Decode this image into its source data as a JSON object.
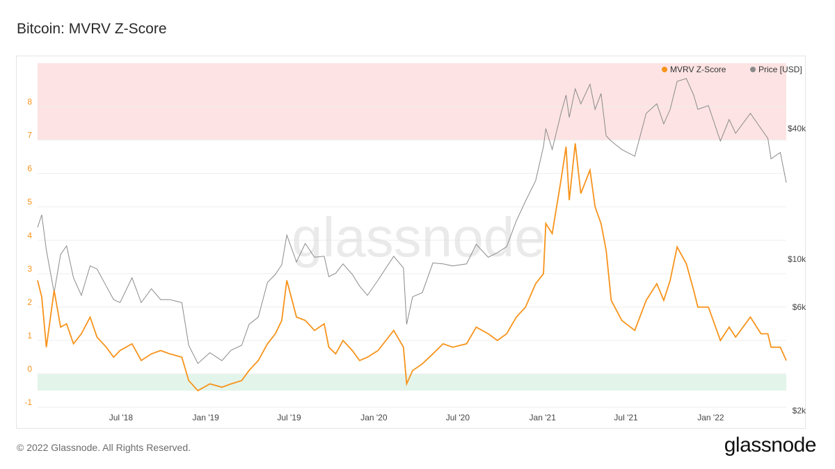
{
  "header": {
    "title": "Bitcoin: MVRV Z-Score"
  },
  "footer": {
    "copyright": "© 2022 Glassnode. All Rights Reserved.",
    "brand": "glassnode"
  },
  "watermark": "glassnode",
  "colors": {
    "mvrv": "#f7931a",
    "price": "#8a8a8a",
    "top_band": "#fde3e3",
    "bottom_band": "#e3f4ea",
    "grid": "#ededed"
  },
  "chart_data": {
    "type": "line",
    "title": "Bitcoin: MVRV Z-Score",
    "legend": {
      "placement": "top-right",
      "entries": [
        "MVRV Z-Score",
        "Price [USD]"
      ]
    },
    "x_ticks": [
      "Jul '18",
      "Jan '19",
      "Jul '19",
      "Jan '20",
      "Jul '20",
      "Jan '21",
      "Jul '21",
      "Jan '22"
    ],
    "x_tick_dates": [
      "2018-07-01",
      "2019-01-01",
      "2019-07-01",
      "2020-01-01",
      "2020-07-01",
      "2021-01-01",
      "2021-07-01",
      "2022-01-01"
    ],
    "x_range": [
      "2018-01-01",
      "2022-06-14"
    ],
    "y_left": {
      "label": "",
      "ticks": [
        "-1",
        "0",
        "1",
        "2",
        "3",
        "4",
        "5",
        "6",
        "7",
        "8"
      ],
      "range": [
        -1.1,
        9.3
      ]
    },
    "y_right": {
      "label": "",
      "scale": "log",
      "ticks": [
        "$2k",
        "$6k",
        "$10k",
        "$40k"
      ],
      "tick_values": [
        2000,
        6000,
        10000,
        40000
      ],
      "range": [
        2000,
        80000
      ]
    },
    "bands": [
      {
        "name": "top",
        "from": 7,
        "to": 9.3
      },
      {
        "name": "bottom",
        "from": -0.5,
        "to": 0
      }
    ],
    "series": [
      {
        "name": "MVRV Z-Score",
        "axis": "left",
        "x": [
          "2018-01-01",
          "2018-01-10",
          "2018-01-20",
          "2018-02-06",
          "2018-02-20",
          "2018-03-05",
          "2018-03-20",
          "2018-04-06",
          "2018-04-25",
          "2018-05-10",
          "2018-05-30",
          "2018-06-15",
          "2018-06-29",
          "2018-07-25",
          "2018-08-14",
          "2018-09-05",
          "2018-09-25",
          "2018-10-15",
          "2018-11-10",
          "2018-11-25",
          "2018-12-15",
          "2019-01-10",
          "2019-02-05",
          "2019-02-25",
          "2019-03-20",
          "2019-04-05",
          "2019-04-25",
          "2019-05-15",
          "2019-06-01",
          "2019-06-15",
          "2019-06-26",
          "2019-07-17",
          "2019-08-05",
          "2019-08-25",
          "2019-09-15",
          "2019-09-25",
          "2019-10-10",
          "2019-10-26",
          "2019-11-15",
          "2019-12-01",
          "2019-12-18",
          "2020-01-10",
          "2020-02-13",
          "2020-03-05",
          "2020-03-12",
          "2020-03-25",
          "2020-04-15",
          "2020-05-08",
          "2020-05-30",
          "2020-06-20",
          "2020-07-20",
          "2020-08-10",
          "2020-09-05",
          "2020-09-25",
          "2020-10-15",
          "2020-11-05",
          "2020-11-25",
          "2020-12-17",
          "2021-01-03",
          "2021-01-08",
          "2021-01-22",
          "2021-02-10",
          "2021-02-21",
          "2021-02-28",
          "2021-03-13",
          "2021-03-25",
          "2021-04-14",
          "2021-04-25",
          "2021-05-08",
          "2021-05-19",
          "2021-05-30",
          "2021-06-22",
          "2021-07-20",
          "2021-08-14",
          "2021-09-06",
          "2021-09-21",
          "2021-10-05",
          "2021-10-20",
          "2021-11-09",
          "2021-11-25",
          "2021-12-04",
          "2021-12-27",
          "2022-01-22",
          "2022-02-10",
          "2022-02-24",
          "2022-03-28",
          "2022-04-20",
          "2022-05-05",
          "2022-05-12",
          "2022-06-01",
          "2022-06-14"
        ],
        "values": [
          2.8,
          2.3,
          0.8,
          2.5,
          1.4,
          1.5,
          0.9,
          1.2,
          1.7,
          1.1,
          0.8,
          0.5,
          0.7,
          0.9,
          0.4,
          0.6,
          0.7,
          0.6,
          0.5,
          -0.2,
          -0.5,
          -0.3,
          -0.4,
          -0.3,
          -0.2,
          0.1,
          0.4,
          0.9,
          1.2,
          1.6,
          2.8,
          1.7,
          1.6,
          1.3,
          1.5,
          0.8,
          0.6,
          1.0,
          0.7,
          0.4,
          0.5,
          0.7,
          1.3,
          0.8,
          -0.3,
          0.1,
          0.3,
          0.6,
          0.9,
          0.8,
          0.9,
          1.4,
          1.2,
          1.0,
          1.2,
          1.7,
          2.0,
          2.7,
          3.0,
          4.5,
          4.2,
          5.8,
          6.8,
          5.2,
          6.9,
          5.4,
          6.1,
          5.0,
          4.5,
          3.7,
          2.2,
          1.6,
          1.3,
          2.2,
          2.7,
          2.2,
          2.8,
          3.8,
          3.3,
          2.5,
          2.0,
          2.0,
          1.0,
          1.4,
          1.1,
          1.7,
          1.2,
          1.2,
          0.8,
          0.8,
          0.4
        ]
      },
      {
        "name": "Price [USD]",
        "axis": "right",
        "x": [
          "2018-01-01",
          "2018-01-10",
          "2018-01-20",
          "2018-02-06",
          "2018-02-20",
          "2018-03-05",
          "2018-03-20",
          "2018-04-06",
          "2018-04-25",
          "2018-05-10",
          "2018-05-30",
          "2018-06-15",
          "2018-06-29",
          "2018-07-25",
          "2018-08-14",
          "2018-09-05",
          "2018-09-25",
          "2018-10-15",
          "2018-11-10",
          "2018-11-25",
          "2018-12-15",
          "2019-01-10",
          "2019-02-05",
          "2019-02-25",
          "2019-03-20",
          "2019-04-05",
          "2019-04-25",
          "2019-05-15",
          "2019-06-01",
          "2019-06-15",
          "2019-06-26",
          "2019-07-17",
          "2019-08-05",
          "2019-08-25",
          "2019-09-15",
          "2019-09-25",
          "2019-10-10",
          "2019-10-26",
          "2019-11-15",
          "2019-12-01",
          "2019-12-18",
          "2020-01-10",
          "2020-02-13",
          "2020-03-05",
          "2020-03-12",
          "2020-03-25",
          "2020-04-15",
          "2020-05-08",
          "2020-05-30",
          "2020-06-20",
          "2020-07-20",
          "2020-08-10",
          "2020-09-05",
          "2020-09-25",
          "2020-10-15",
          "2020-11-05",
          "2020-11-25",
          "2020-12-17",
          "2021-01-03",
          "2021-01-08",
          "2021-01-22",
          "2021-02-10",
          "2021-02-21",
          "2021-02-28",
          "2021-03-13",
          "2021-03-25",
          "2021-04-14",
          "2021-04-25",
          "2021-05-08",
          "2021-05-19",
          "2021-05-30",
          "2021-06-22",
          "2021-07-20",
          "2021-08-14",
          "2021-09-06",
          "2021-09-21",
          "2021-10-05",
          "2021-10-20",
          "2021-11-09",
          "2021-11-25",
          "2021-12-04",
          "2021-12-27",
          "2022-01-22",
          "2022-02-10",
          "2022-02-24",
          "2022-03-28",
          "2022-04-20",
          "2022-05-05",
          "2022-05-12",
          "2022-06-01",
          "2022-06-14"
        ],
        "values": [
          14000,
          16000,
          11000,
          7000,
          10500,
          11500,
          8200,
          6800,
          9300,
          9000,
          7500,
          6500,
          6300,
          8200,
          6300,
          7300,
          6500,
          6500,
          6300,
          4000,
          3300,
          3700,
          3400,
          3800,
          4000,
          5000,
          5400,
          7800,
          8500,
          9400,
          12900,
          9700,
          11800,
          10200,
          10300,
          8300,
          8600,
          9500,
          8500,
          7500,
          6800,
          8000,
          10300,
          9100,
          5000,
          6700,
          7000,
          9600,
          9500,
          9300,
          9500,
          11700,
          10200,
          10700,
          11400,
          15000,
          18500,
          23000,
          33000,
          40000,
          32000,
          47000,
          57000,
          45000,
          61000,
          52000,
          64000,
          49000,
          58000,
          37000,
          35000,
          32000,
          29800,
          47000,
          52000,
          42000,
          49000,
          66000,
          68000,
          57000,
          49000,
          51000,
          35000,
          44000,
          38000,
          47000,
          40000,
          36000,
          29000,
          31000,
          22500
        ]
      }
    ]
  }
}
